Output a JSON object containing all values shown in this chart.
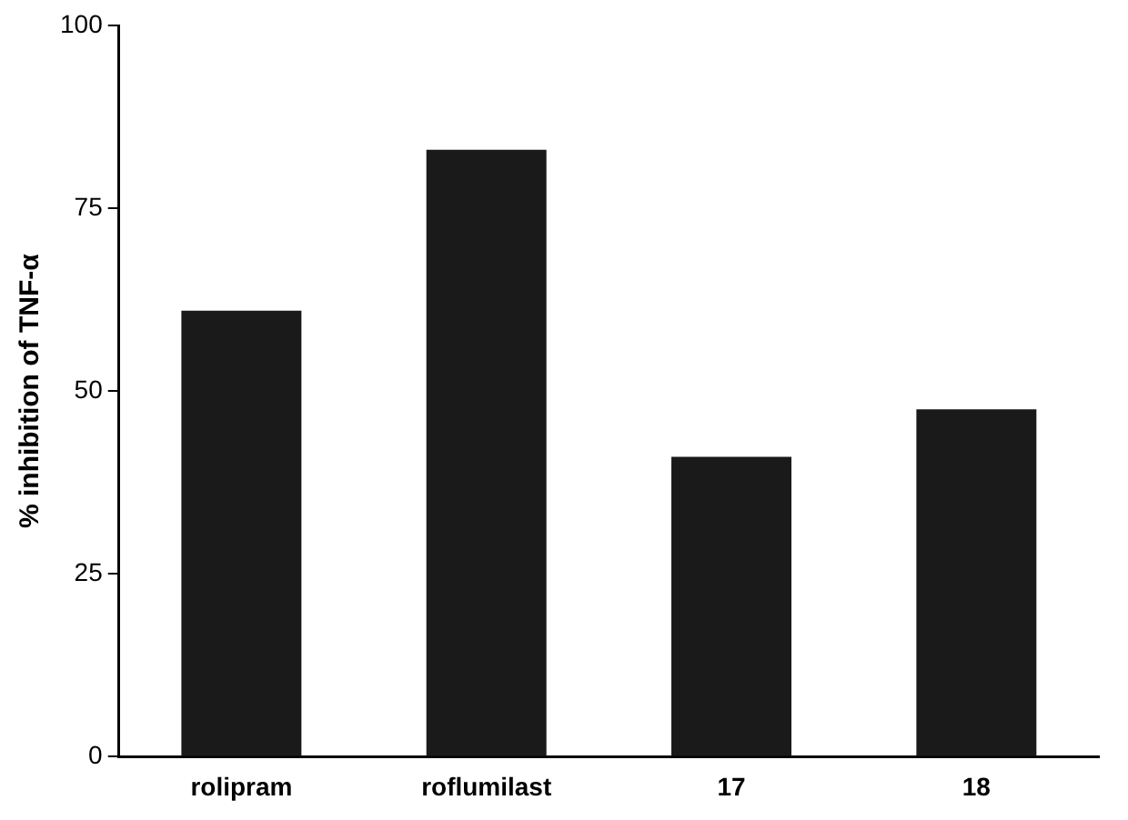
{
  "chart_data": {
    "type": "bar",
    "ylabel": "% inhibition of TNF-α",
    "categories": [
      "rolipram",
      "roflumilast",
      "17",
      "18"
    ],
    "values": [
      61,
      83,
      41,
      47.5
    ],
    "color": "#1a1a1a",
    "ylim": [
      0,
      100
    ],
    "yticks": [
      0,
      25,
      50,
      75,
      100
    ],
    "grid": false,
    "legend": false
  }
}
